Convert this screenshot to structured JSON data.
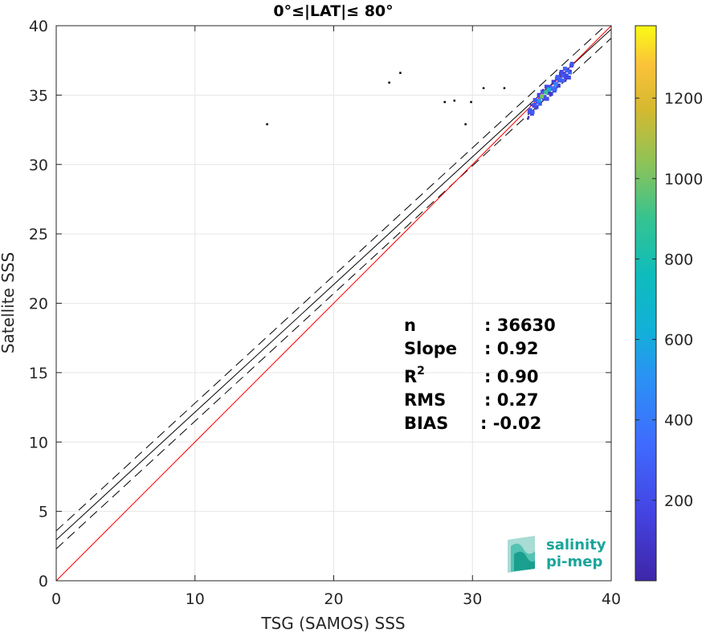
{
  "chart_data": {
    "type": "scatter",
    "title": "0°≤|LAT|≤ 80°",
    "xlabel": "TSG (SAMOS) SSS",
    "ylabel": "Satellite SSS",
    "xlim": [
      0,
      40
    ],
    "ylim": [
      0,
      40
    ],
    "xticks": [
      "0",
      "10",
      "20",
      "30",
      "40"
    ],
    "yticks": [
      "0",
      "5",
      "10",
      "15",
      "20",
      "25",
      "30",
      "35",
      "40"
    ],
    "grid": true,
    "stats": {
      "n_label": "n",
      "n_value": ": 36630",
      "slope_label": "Slope",
      "slope_value": ": 0.92",
      "r2_label": "R",
      "r2_sup": "2",
      "r2_value": ": 0.90",
      "rms_label": "RMS",
      "rms_value": ": 0.27",
      "bias_label": "BIAS",
      "bias_value": ": -0.02"
    },
    "lines": {
      "identity": {
        "slope": 1,
        "intercept": 0,
        "color": "#ff0000"
      },
      "fit": {
        "slope": 0.92,
        "intercept": 2.95,
        "color": "#000000"
      },
      "fit_upper": {
        "slope": 0.92,
        "intercept": 3.6,
        "style": "dashed"
      },
      "fit_lower": {
        "slope": 0.92,
        "intercept": 2.3,
        "style": "dashed"
      }
    },
    "density_points": [
      {
        "x": 35.0,
        "y": 34.9,
        "c": 1000
      },
      {
        "x": 35.5,
        "y": 35.4,
        "c": 700
      },
      {
        "x": 34.8,
        "y": 34.6,
        "c": 500
      },
      {
        "x": 36.0,
        "y": 35.8,
        "c": 450
      },
      {
        "x": 35.3,
        "y": 35.2,
        "c": 900
      },
      {
        "x": 36.5,
        "y": 36.4,
        "c": 250
      },
      {
        "x": 34.5,
        "y": 34.3,
        "c": 250
      },
      {
        "x": 35.8,
        "y": 35.5,
        "c": 350
      },
      {
        "x": 24.0,
        "y": 35.9,
        "c": 5
      },
      {
        "x": 24.8,
        "y": 36.6,
        "c": 5
      },
      {
        "x": 28.0,
        "y": 34.5,
        "c": 5
      },
      {
        "x": 28.7,
        "y": 34.6,
        "c": 5
      },
      {
        "x": 29.9,
        "y": 34.5,
        "c": 5
      },
      {
        "x": 15.2,
        "y": 32.9,
        "c": 5
      },
      {
        "x": 29.5,
        "y": 32.9,
        "c": 5
      },
      {
        "x": 30.8,
        "y": 35.5,
        "c": 5
      },
      {
        "x": 32.3,
        "y": 35.5,
        "c": 5
      }
    ],
    "colorbar": {
      "min": 0,
      "max": 1380,
      "ticks": [
        "200",
        "400",
        "600",
        "800",
        "1000",
        "1200"
      ],
      "tick_values": [
        200,
        400,
        600,
        800,
        1000,
        1200
      ],
      "colormap": "parula"
    }
  },
  "logo": {
    "line1": "salinity",
    "line2": "pi-mep"
  }
}
